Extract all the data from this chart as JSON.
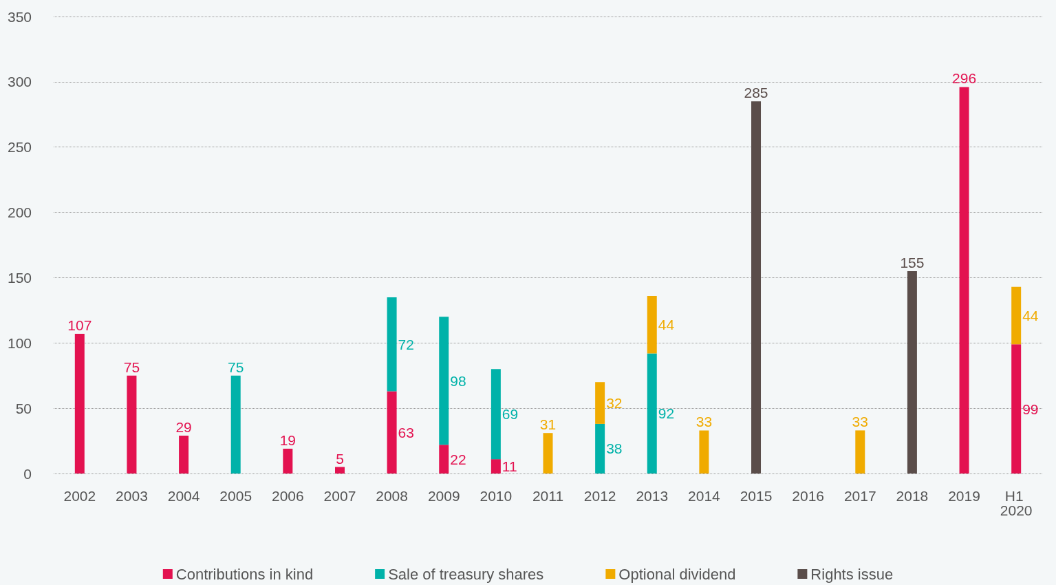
{
  "chart_data": {
    "type": "bar",
    "stacked": true,
    "categories": [
      "2002",
      "2003",
      "2004",
      "2005",
      "2006",
      "2007",
      "2008",
      "2009",
      "2010",
      "2011",
      "2012",
      "2013",
      "2014",
      "2015",
      "2016",
      "2017",
      "2018",
      "2019",
      "H1 2020"
    ],
    "series": [
      {
        "name": "Contributions in kind",
        "color": "#e31250",
        "values": [
          107,
          75,
          29,
          null,
          19,
          5,
          63,
          22,
          11,
          null,
          null,
          null,
          null,
          null,
          null,
          null,
          null,
          296,
          99
        ]
      },
      {
        "name": "Sale of treasury shares",
        "color": "#00b2a9",
        "values": [
          null,
          null,
          null,
          75,
          null,
          null,
          72,
          98,
          69,
          null,
          38,
          92,
          null,
          null,
          null,
          null,
          null,
          null,
          null
        ]
      },
      {
        "name": "Optional dividend",
        "color": "#f0ab00",
        "values": [
          null,
          null,
          null,
          null,
          null,
          null,
          null,
          null,
          null,
          31,
          32,
          44,
          33,
          null,
          null,
          33,
          null,
          null,
          44
        ]
      },
      {
        "name": "Rights issue",
        "color": "#5a4d4a",
        "values": [
          null,
          null,
          null,
          null,
          null,
          null,
          null,
          null,
          null,
          null,
          null,
          null,
          null,
          285,
          null,
          null,
          155,
          null,
          null
        ]
      }
    ],
    "ylim": [
      0,
      350
    ],
    "yticks": [
      0,
      50,
      100,
      150,
      200,
      250,
      300,
      350
    ],
    "grid": "y",
    "legend": "bottom",
    "data_labels": true
  }
}
